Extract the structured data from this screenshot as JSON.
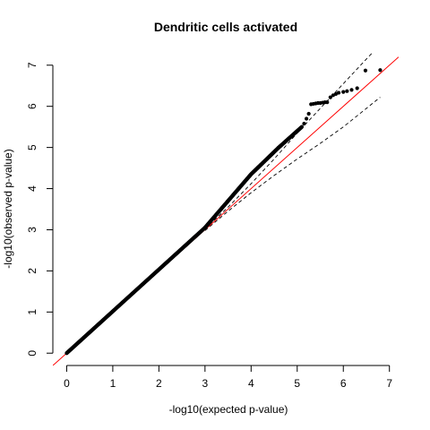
{
  "chart_data": {
    "type": "scatter",
    "title": "Dendritic cells activated",
    "xlabel": "-log10(expected p-value)",
    "ylabel": "-log10(observed p-value)",
    "xlim": [
      -0.3,
      7.2
    ],
    "ylim": [
      -0.3,
      7.3
    ],
    "xticks": [
      0,
      1,
      2,
      3,
      4,
      5,
      6,
      7
    ],
    "yticks": [
      0,
      1,
      2,
      3,
      4,
      5,
      6,
      7
    ],
    "grid": false,
    "colors": {
      "points": "#000000",
      "reference_line": "#ff0000",
      "confidence_band": "#000000"
    },
    "reference_line": {
      "slope": 1,
      "intercept": 0
    },
    "confidence_band": {
      "x": [
        3.0,
        3.5,
        4.0,
        4.5,
        5.0,
        5.5,
        6.0,
        6.5,
        6.8
      ],
      "upper": [
        3.02,
        3.55,
        4.12,
        4.72,
        5.35,
        5.95,
        6.55,
        7.15,
        7.5
      ],
      "lower": [
        2.98,
        3.45,
        3.9,
        4.32,
        4.72,
        5.1,
        5.5,
        5.95,
        6.22
      ]
    },
    "dense_segments": [
      {
        "x0": 0.0,
        "y0": 0.0,
        "x1": 3.0,
        "y1": 3.05,
        "n": 420
      },
      {
        "x0": 3.0,
        "y0": 3.05,
        "x1": 4.0,
        "y1": 4.35,
        "n": 200
      },
      {
        "x0": 4.0,
        "y0": 4.35,
        "x1": 4.6,
        "y1": 5.0,
        "n": 110
      },
      {
        "x0": 4.6,
        "y0": 5.0,
        "x1": 5.1,
        "y1": 5.5,
        "n": 80
      }
    ],
    "points": [
      [
        5.15,
        5.58
      ],
      [
        5.2,
        5.7
      ],
      [
        5.25,
        5.82
      ],
      [
        5.3,
        6.05
      ],
      [
        5.35,
        6.06
      ],
      [
        5.4,
        6.07
      ],
      [
        5.45,
        6.08
      ],
      [
        5.5,
        6.08
      ],
      [
        5.55,
        6.09
      ],
      [
        5.6,
        6.1
      ],
      [
        5.65,
        6.1
      ],
      [
        5.72,
        6.22
      ],
      [
        5.78,
        6.27
      ],
      [
        5.84,
        6.3
      ],
      [
        5.9,
        6.33
      ],
      [
        6.0,
        6.35
      ],
      [
        6.08,
        6.37
      ],
      [
        6.18,
        6.4
      ],
      [
        6.3,
        6.44
      ],
      [
        6.48,
        6.87
      ],
      [
        6.8,
        6.88
      ]
    ]
  }
}
